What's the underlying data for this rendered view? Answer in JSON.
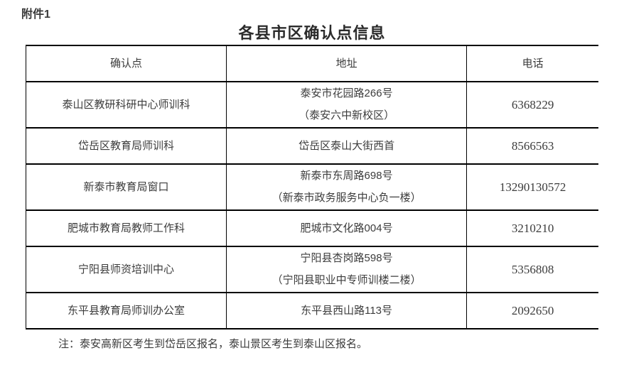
{
  "page": {
    "attachment_label": "附件1",
    "title": "各县市区确认点信息",
    "note": "注：泰安高新区考生到岱岳区报名，泰山景区考生到泰山区报名。"
  },
  "table": {
    "columns": [
      "确认点",
      "地址",
      "电话"
    ],
    "rows": [
      {
        "point": "泰山区教研科研中心师训科",
        "address_lines": [
          "泰安市花园路266号",
          "（泰安六中新校区）"
        ],
        "phone": "6368229"
      },
      {
        "point": "岱岳区教育局师训科",
        "address_lines": [
          "岱岳区泰山大街西首"
        ],
        "phone": "8566563"
      },
      {
        "point": "新泰市教育局窗口",
        "address_lines": [
          "新泰市东周路698号",
          "（新泰市政务服务中心负一楼）"
        ],
        "phone": "13290130572"
      },
      {
        "point": "肥城市教育局教师工作科",
        "address_lines": [
          "肥城市文化路004号"
        ],
        "phone": "3210210"
      },
      {
        "point": "宁阳县师资培训中心",
        "address_lines": [
          "宁阳县杏岗路598号",
          "（宁阳县职业中专师训楼二楼）"
        ],
        "phone": "5356808"
      },
      {
        "point": "东平县教育局师训办公室",
        "address_lines": [
          "东平县西山路113号"
        ],
        "phone": "2092650"
      }
    ]
  },
  "colors": {
    "background": "#ffffff",
    "text": "#3c3c3c",
    "title_text": "#2b2b2b",
    "border": "#000000"
  }
}
